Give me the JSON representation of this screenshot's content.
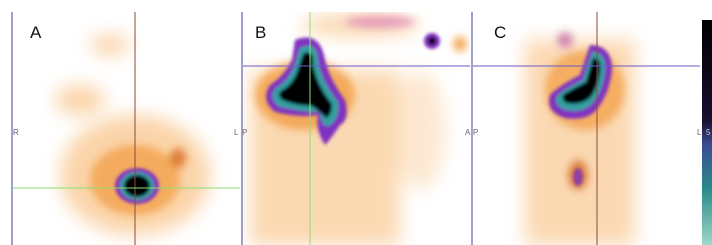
{
  "panels": [
    {
      "label": "A",
      "left": "R",
      "right": "L"
    },
    {
      "label": "B",
      "left": "P",
      "right": "A"
    },
    {
      "label": "C",
      "left": "P",
      "right": "L"
    }
  ],
  "colorbar": {
    "label": "5"
  }
}
